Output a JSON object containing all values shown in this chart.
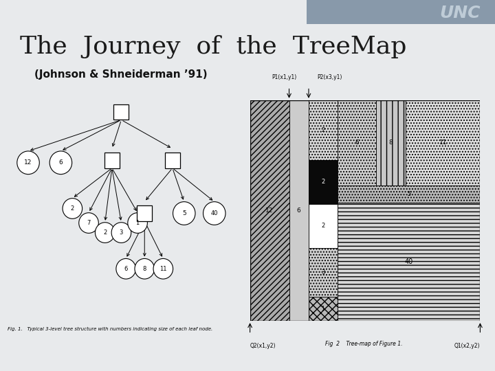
{
  "title": "The  Journey  of  the  TreeMap",
  "subtitle": "(Johnson & Shneiderman ’91)",
  "background_color": "#f0f0f0",
  "header_color": "#6b7d8c",
  "unc_text": "UNC",
  "title_fontsize": 26,
  "subtitle_fontsize": 11,
  "fig_caption1": "Fig. 1.   Typical 3-level tree structure with numbers indicating size of each leaf node.",
  "fig_caption2": "Fig  2    Tree-map of Figure 1.",
  "p1_label": "P1(x1,y1)",
  "p2_label": "P2(x3,y1)",
  "q2_label": "Q2(x1,y2)",
  "q1_label": "Q1(x2,y2)"
}
